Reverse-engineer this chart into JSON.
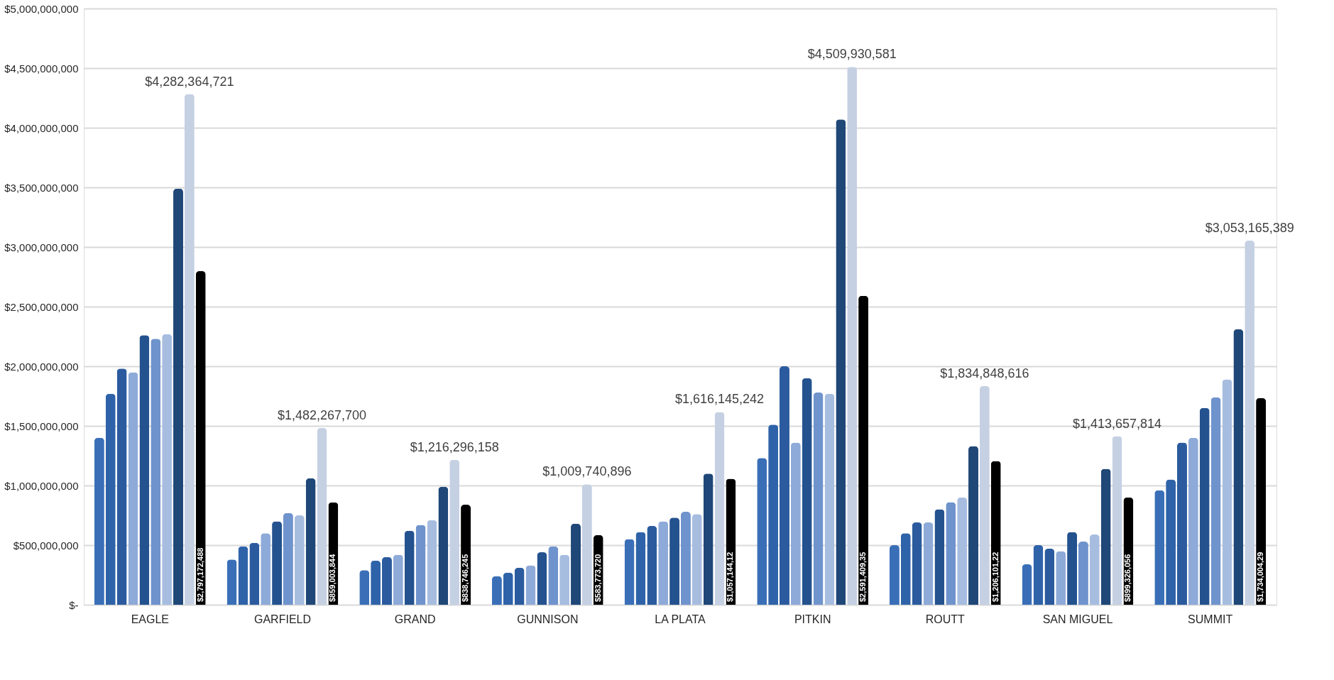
{
  "chart_data": {
    "type": "bar",
    "categories": [
      "EAGLE",
      "GARFIELD",
      "GRAND",
      "GUNNISON",
      "LA PLATA",
      "PITKIN",
      "ROUTT",
      "SAN MIGUEL",
      "SUMMIT"
    ],
    "series": [
      {
        "color": "#3a6fb8",
        "values": [
          1400000000,
          380000000,
          290000000,
          240000000,
          550000000,
          1230000000,
          500000000,
          340000000,
          960000000
        ]
      },
      {
        "color": "#2f63a9",
        "values": [
          1770000000,
          490000000,
          370000000,
          270000000,
          610000000,
          1510000000,
          600000000,
          500000000,
          1050000000
        ]
      },
      {
        "color": "#2b5b9e",
        "values": [
          1980000000,
          520000000,
          400000000,
          310000000,
          660000000,
          2000000000,
          690000000,
          470000000,
          1360000000
        ]
      },
      {
        "color": "#8eaad8",
        "values": [
          1950000000,
          600000000,
          420000000,
          330000000,
          700000000,
          1360000000,
          690000000,
          450000000,
          1400000000
        ]
      },
      {
        "color": "#24528f",
        "values": [
          2260000000,
          700000000,
          620000000,
          440000000,
          730000000,
          1900000000,
          800000000,
          610000000,
          1650000000
        ]
      },
      {
        "color": "#6f93cc",
        "values": [
          2230000000,
          770000000,
          670000000,
          490000000,
          780000000,
          1780000000,
          860000000,
          530000000,
          1740000000
        ]
      },
      {
        "color": "#a7bde0",
        "values": [
          2270000000,
          750000000,
          710000000,
          420000000,
          760000000,
          1770000000,
          900000000,
          590000000,
          1890000000
        ]
      },
      {
        "color": "#1f4777",
        "values": [
          3490000000,
          1060000000,
          990000000,
          680000000,
          1100000000,
          4070000000,
          1330000000,
          1140000000,
          2310000000
        ]
      },
      {
        "color": "#c5d0e3",
        "values": [
          4282364721,
          1482267700,
          1216296158,
          1009740896,
          1616145242,
          4509930581,
          1834848616,
          1413657814,
          3053165389
        ],
        "value_labels": [
          "$4,282,364,721",
          "$1,482,267,700",
          "$1,216,296,158",
          "$1,009,740,896",
          "$1,616,145,242",
          "$4,509,930,581",
          "$1,834,848,616",
          "$1,413,657,814",
          "$3,053,165,389"
        ]
      },
      {
        "color": "#000000",
        "values": [
          2797172488,
          859003844,
          838746245,
          583773720,
          1057000000,
          2591000000,
          1206000000,
          899326056,
          1734000000
        ],
        "value_labels": [
          "$2,797,172,488",
          "$859,003,844",
          "$838,746,245",
          "$583,773,720",
          "$1,057,144,12",
          "$2,591,409,35",
          "$1,206,101,22",
          "$899,326,056",
          "$1,734,004,29"
        ]
      }
    ],
    "ylim": [
      0,
      5000000000
    ],
    "yticks": [
      {
        "value": 0,
        "label": "$-"
      },
      {
        "value": 500000000,
        "label": "$500,000,000"
      },
      {
        "value": 1000000000,
        "label": "$1,000,000,000"
      },
      {
        "value": 1500000000,
        "label": "$1,500,000,000"
      },
      {
        "value": 2000000000,
        "label": "$2,000,000,000"
      },
      {
        "value": 2500000000,
        "label": "$2,500,000,000"
      },
      {
        "value": 3000000000,
        "label": "$3,000,000,000"
      },
      {
        "value": 3500000000,
        "label": "$3,500,000,000"
      },
      {
        "value": 4000000000,
        "label": "$4,000,000,000"
      },
      {
        "value": 4500000000,
        "label": "$4,500,000,000"
      },
      {
        "value": 5000000000,
        "label": "$5,000,000,000"
      }
    ],
    "grid": "y"
  }
}
